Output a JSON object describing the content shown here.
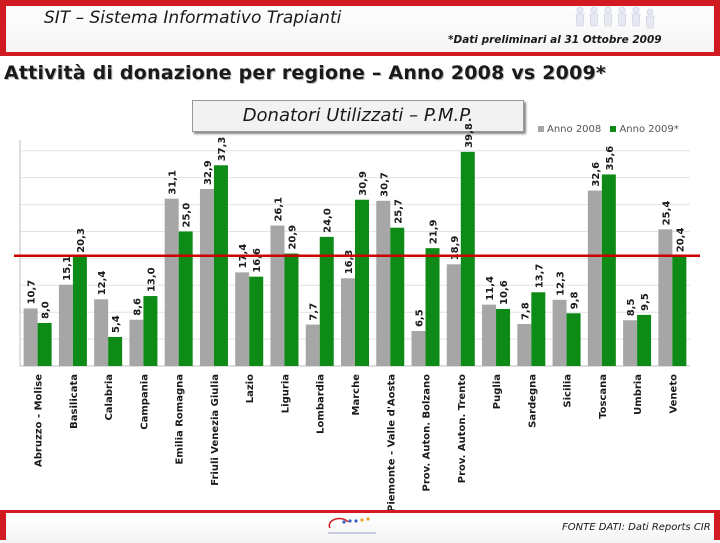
{
  "header": {
    "app_title": "SIT – Sistema Informativo Trapianti",
    "preliminary_note": "*Dati preliminari al 31 Ottobre 2009"
  },
  "colors": {
    "accent": "#d11b22",
    "series_2008": "#a6a6a6",
    "series_2009": "#0e8a16",
    "reference_line": "#cc0000"
  },
  "icons": [
    "people-logo-icon",
    "cnt-logo-icon"
  ],
  "chart_data": {
    "type": "bar",
    "title": "Attività di donazione per regione – Anno 2008 vs 2009*",
    "subtitle": "Donatori Utilizzati – P.M.P.",
    "categories": [
      "Abruzzo - Molise",
      "Basilicata",
      "Calabria",
      "Campania",
      "Emilia Romagna",
      "Friuli Venezia Giulia",
      "Lazio",
      "Liguria",
      "Lombardia",
      "Marche",
      "Piemonte - Valle d'Aosta",
      "Prov. Auton. Bolzano",
      "Prov. Auton. Trento",
      "Puglia",
      "Sardegna",
      "Sicilia",
      "Toscana",
      "Umbria",
      "Veneto"
    ],
    "series": [
      {
        "name": "Anno 2008",
        "values": [
          10.7,
          15.1,
          12.4,
          8.6,
          31.1,
          32.9,
          17.4,
          26.1,
          7.7,
          16.3,
          30.7,
          6.5,
          18.9,
          11.4,
          7.8,
          12.3,
          32.6,
          8.5,
          25.4
        ]
      },
      {
        "name": "Anno 2009*",
        "values": [
          8.0,
          20.3,
          5.4,
          13.0,
          25.0,
          37.3,
          16.6,
          20.9,
          24.0,
          30.9,
          25.7,
          21.9,
          39.8,
          10.6,
          13.7,
          9.8,
          35.6,
          9.5,
          20.4
        ]
      }
    ],
    "labels": [
      [
        "10,7",
        "15,1",
        "12,4",
        "8,6",
        "31,1",
        "32,9",
        "17,4",
        "26,1",
        "7,7",
        "16,3",
        "30,7",
        "6,5",
        "18,9",
        "11,4",
        "7,8",
        "12,3",
        "32,6",
        "8,5",
        "25,4"
      ],
      [
        "8,0",
        "20,3",
        "5,4",
        "13,0",
        "25,0",
        "37,3",
        "16,6",
        "20,9",
        "24,0",
        "30,9",
        "25,7",
        "21,9",
        "39,8",
        "10,6",
        "13,7",
        "9,8",
        "35,6",
        "9,5",
        "20,4"
      ]
    ],
    "reference_value": 20.5,
    "ylim": [
      0,
      42
    ],
    "grid": true,
    "legend": "top-right"
  },
  "footer": {
    "source": "FONTE DATI: Dati Reports CIR"
  }
}
